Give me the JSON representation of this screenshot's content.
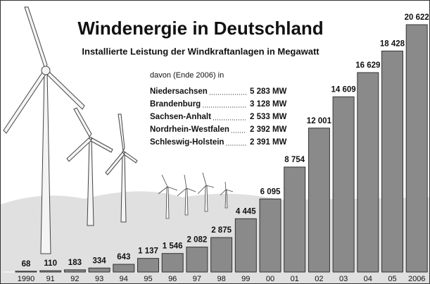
{
  "chart_data": {
    "type": "bar",
    "title": "Windenergie in Deutschland",
    "subtitle": "Installierte Leistung der Windkraftanlagen in Megawatt",
    "categories": [
      "1990",
      "91",
      "92",
      "93",
      "94",
      "95",
      "96",
      "97",
      "98",
      "99",
      "00",
      "01",
      "02",
      "03",
      "04",
      "05",
      "2006"
    ],
    "values": [
      68,
      110,
      183,
      334,
      643,
      1137,
      1546,
      2082,
      2875,
      4445,
      6095,
      8754,
      12001,
      14609,
      16629,
      18428,
      20622
    ],
    "value_labels": [
      "68",
      "110",
      "183",
      "334",
      "643",
      "1 137",
      "1 546",
      "2 082",
      "2 875",
      "4 445",
      "6 095",
      "8 754",
      "12 001",
      "14 609",
      "16 629",
      "18 428",
      "20 622"
    ],
    "color": "#8a8a8a",
    "ylim": [
      0,
      21000
    ],
    "note": {
      "heading": "davon (Ende 2006) in",
      "rows": [
        {
          "name": "Niedersachsen",
          "value": "5 283 MW"
        },
        {
          "name": "Brandenburg",
          "value": "3 128 MW"
        },
        {
          "name": "Sachsen-Anhalt",
          "value": "2 533 MW"
        },
        {
          "name": "Nordrhein-Westfalen",
          "value": "2 392 MW"
        },
        {
          "name": "Schleswig-Holstein",
          "value": "2 391 MW"
        }
      ]
    }
  }
}
